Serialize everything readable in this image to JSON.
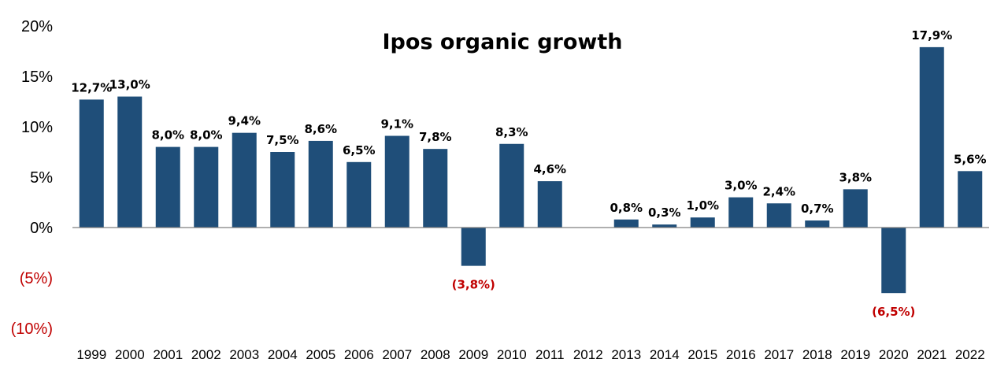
{
  "chart_data": {
    "type": "bar",
    "title": "Ipos organic growth",
    "xlabel": "",
    "ylabel": "",
    "ylim": [
      -10,
      20
    ],
    "grid": false,
    "legend": "none",
    "y_ticks": [
      {
        "value": 20,
        "label": "20%"
      },
      {
        "value": 15,
        "label": "15%"
      },
      {
        "value": 10,
        "label": "10%"
      },
      {
        "value": 5,
        "label": "5%"
      },
      {
        "value": 0,
        "label": "0%"
      },
      {
        "value": -5,
        "label": "(5%)"
      },
      {
        "value": -10,
        "label": "(10%)"
      }
    ],
    "categories": [
      "1999",
      "2000",
      "2001",
      "2002",
      "2003",
      "2004",
      "2005",
      "2006",
      "2007",
      "2008",
      "2009",
      "2010",
      "2011",
      "2012",
      "2013",
      "2014",
      "2015",
      "2016",
      "2017",
      "2018",
      "2019",
      "2020",
      "2021",
      "2022"
    ],
    "values": [
      12.7,
      13.0,
      8.0,
      8.0,
      9.4,
      7.5,
      8.6,
      6.5,
      9.1,
      7.8,
      -3.8,
      8.3,
      4.6,
      null,
      0.8,
      0.3,
      1.0,
      3.0,
      2.4,
      0.7,
      3.8,
      -6.5,
      17.9,
      5.6
    ],
    "data_labels": [
      "12,7%",
      "13,0%",
      "8,0%",
      "8,0%",
      "9,4%",
      "7,5%",
      "8,6%",
      "6,5%",
      "9,1%",
      "7,8%",
      "(3,8%)",
      "8,3%",
      "4,6%",
      "",
      "0,8%",
      "0,3%",
      "1,0%",
      "3,0%",
      "2,4%",
      "0,7%",
      "3,8%",
      "(6,5%)",
      "17,9%",
      "5,6%"
    ],
    "colors": {
      "bar": "#1f4e79",
      "axis": "#7f7f7f",
      "positive_text": "#000000",
      "negative_text": "#c00000"
    }
  }
}
